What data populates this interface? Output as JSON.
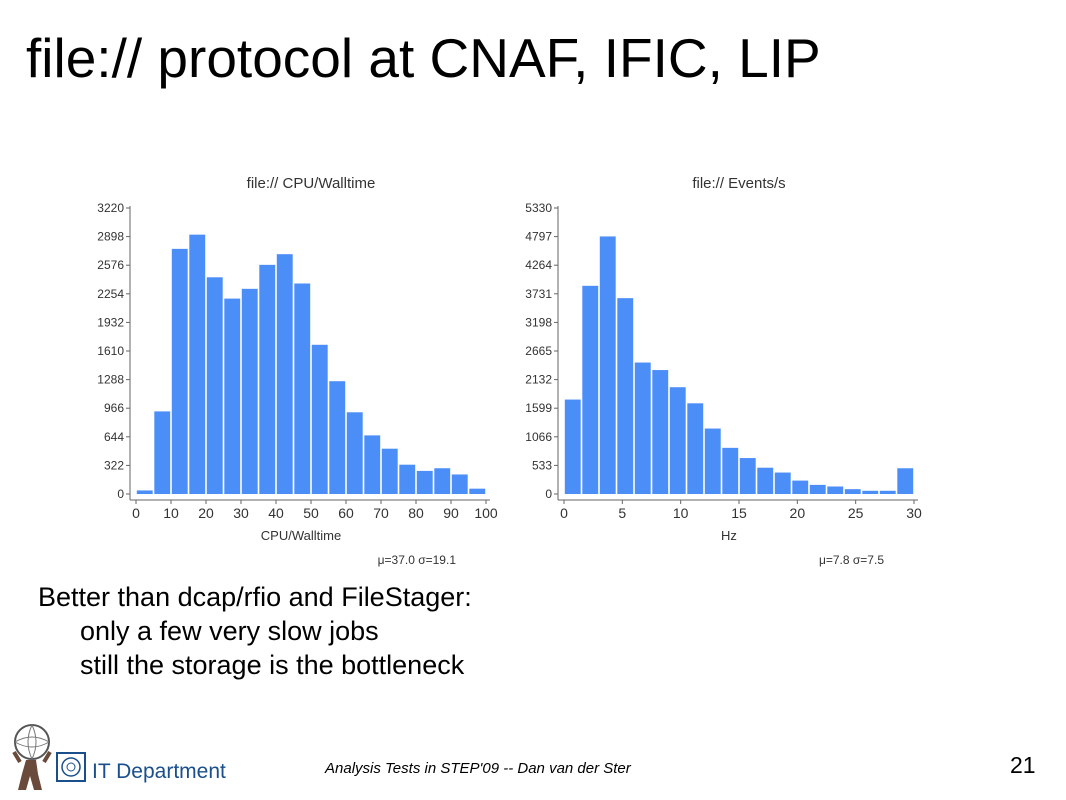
{
  "slide": {
    "title": "file:// protocol at CNAF, IFIC, LIP",
    "body": {
      "heading": "Better than dcap/rfio and FileStager:",
      "points": [
        "only a few very slow jobs",
        "still the storage is the bottleneck"
      ]
    },
    "footer": "Analysis Tests in STEP'09  -- Dan van der Ster",
    "page_number": "21",
    "department": "IT Department"
  },
  "colors": {
    "bar": "#4c8ef7",
    "axis": "#666666",
    "text": "#333333",
    "department": "#1a4f8c"
  },
  "chart_data": [
    {
      "type": "bar",
      "title": "file:// CPU/Walltime",
      "xlabel": "CPU/Walltime",
      "ylabel": "",
      "stats": "μ=37.0 σ=19.1",
      "bin_width": 5,
      "x": [
        0,
        5,
        10,
        15,
        20,
        25,
        30,
        35,
        40,
        45,
        50,
        55,
        60,
        65,
        70,
        75,
        80,
        85,
        90,
        95
      ],
      "values": [
        40,
        930,
        2760,
        2920,
        2440,
        2200,
        2310,
        2580,
        2700,
        2370,
        1680,
        1270,
        920,
        660,
        510,
        330,
        260,
        290,
        220,
        60
      ],
      "xlim": [
        0,
        100
      ],
      "ylim": [
        0,
        3220
      ],
      "xticks": [
        "0",
        "10",
        "20",
        "30",
        "40",
        "50",
        "60",
        "70",
        "80",
        "90",
        "100"
      ],
      "yticks": [
        "0",
        "322",
        "644",
        "966",
        "1288",
        "1610",
        "1932",
        "2254",
        "2576",
        "2898",
        "3220"
      ],
      "grid": false,
      "legend": "none"
    },
    {
      "type": "bar",
      "title": "file:// Events/s",
      "xlabel": "Hz",
      "ylabel": "",
      "stats": "μ=7.8 σ=7.5",
      "bin_width": 1.5,
      "x": [
        0,
        1.5,
        3,
        4.5,
        6,
        7.5,
        9,
        10.5,
        12,
        13.5,
        15,
        16.5,
        18,
        19.5,
        21,
        22.5,
        24,
        25.5,
        27,
        28.5
      ],
      "values": [
        1760,
        3880,
        4800,
        3650,
        2450,
        2310,
        1990,
        1690,
        1220,
        860,
        670,
        490,
        400,
        250,
        170,
        140,
        90,
        60,
        60,
        480
      ],
      "xlim": [
        0,
        30
      ],
      "ylim": [
        0,
        5330
      ],
      "xticks": [
        "0",
        "5",
        "10",
        "15",
        "20",
        "25",
        "30"
      ],
      "yticks": [
        "0",
        "533",
        "1066",
        "1599",
        "2132",
        "2665",
        "3198",
        "3731",
        "4264",
        "4797",
        "5330"
      ],
      "grid": false,
      "legend": "none"
    }
  ]
}
